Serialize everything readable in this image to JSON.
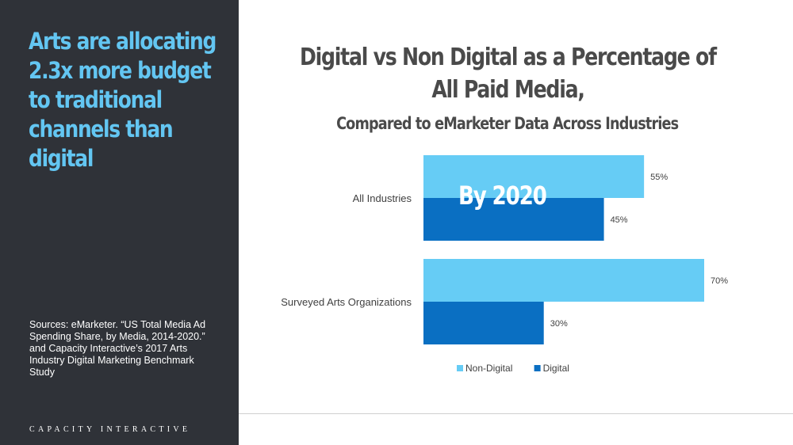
{
  "sidebar": {
    "headline_lines": [
      "Arts are allocating",
      "2.3x more budget",
      "to traditional",
      "channels than",
      "digital"
    ],
    "sources": "Sources: eMarketer. “US Total Media Ad Spending Share, by Media, 2014-2020.” and Capacity Interactive’s 2017 Arts Industry Digital Marketing Benchmark Study",
    "brand": "CAPACITY INTERACTIVE"
  },
  "colors": {
    "panel_bg": "#2f3238",
    "accent": "#63c6f2",
    "non_digital": "#66ccf5",
    "digital": "#0a6fc2"
  },
  "chart_data": {
    "type": "bar",
    "orientation": "horizontal",
    "title_lines": [
      "Digital vs Non Digital as a Percentage of",
      "All Paid Media,"
    ],
    "subtitle": "Compared to eMarketer Data Across Industries",
    "categories": [
      "All Industries",
      "Surveyed Arts Organizations"
    ],
    "series": [
      {
        "name": "Non-Digital",
        "values": [
          55,
          70
        ],
        "labels": [
          "55%",
          "70%"
        ],
        "color": "#66ccf5"
      },
      {
        "name": "Digital",
        "values": [
          45,
          30
        ],
        "labels": [
          "45%",
          "30%"
        ],
        "color": "#0a6fc2"
      }
    ],
    "xlim": [
      0,
      80
    ],
    "annotation": "By 2020",
    "legend": "bottom",
    "grid": false
  }
}
